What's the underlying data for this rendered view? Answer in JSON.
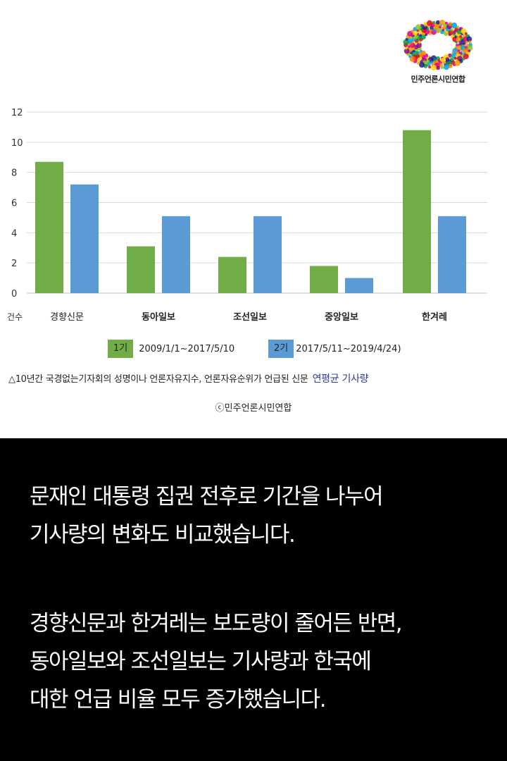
{
  "org_name": "민주언론시민연합",
  "chart_data": {
    "type": "bar",
    "y_unit_label": "건수",
    "categories": [
      "경향신문",
      "동아일보",
      "조선일보",
      "중앙일보",
      "한겨레"
    ],
    "series": [
      {
        "name": "1기",
        "period": "2009/1/1~2017/5/10",
        "color": "#70ad47",
        "values": [
          8.7,
          3.1,
          2.4,
          1.8,
          10.8
        ]
      },
      {
        "name": "2기",
        "period": "2017/5/11~2019/4/24)",
        "color": "#5b9bd5",
        "values": [
          7.2,
          5.1,
          5.1,
          1.0,
          5.1
        ]
      }
    ],
    "ylim": [
      0,
      12
    ],
    "yticks": [
      0,
      2,
      4,
      6,
      8,
      10,
      12
    ],
    "grid": true,
    "legend": "bottom"
  },
  "note": {
    "text": "△10년간 국경없는기자회의 성명이나 언론자유지수, 언론자유순위가 언급된 신문",
    "emphasis": "연평균 기사량"
  },
  "copyright": "ⓒ민주언론시민연합",
  "body_text": {
    "para1": [
      "문재인 대통령 집권 전후로 기간을 나누어",
      "기사량의 변화도 비교했습니다."
    ],
    "para2": [
      "경향신문과 한겨레는 보도량이 줄어든 반면,",
      "동아일보와 조선일보는 기사량과 한국에",
      "대한 언급 비율 모두 증가했습니다."
    ]
  }
}
